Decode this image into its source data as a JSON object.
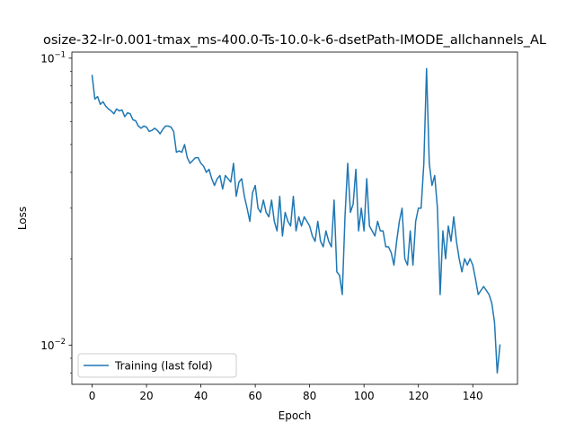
{
  "chart_data": {
    "type": "line",
    "title": "osize-32-lr-0.001-tmax_ms-400.0-Ts-10.0-k-6-dsetPath-IMODE_allchannels_AL",
    "xlabel": "Epoch",
    "ylabel": "Loss",
    "xlim": [
      -7.45,
      156.45
    ],
    "ylim": [
      0.0073,
      0.105
    ],
    "yscale": "log",
    "grid": false,
    "legend_position": "lower-left",
    "x_ticks": [
      0,
      20,
      40,
      60,
      80,
      100,
      120,
      140
    ],
    "x_tick_labels": [
      "0",
      "20",
      "40",
      "60",
      "80",
      "100",
      "120",
      "140"
    ],
    "y_major_ticks": [
      0.01,
      0.1
    ],
    "y_major_tick_labels": [
      "10",
      "10"
    ],
    "y_major_tick_exponents": [
      "−2",
      "−1"
    ],
    "series": [
      {
        "name": "Training (last fold)",
        "color": "#1f77b4",
        "values": [
          0.087,
          0.072,
          0.0735,
          0.069,
          0.0705,
          0.068,
          0.0665,
          0.0655,
          0.064,
          0.0665,
          0.0655,
          0.066,
          0.0625,
          0.0645,
          0.064,
          0.061,
          0.0605,
          0.058,
          0.057,
          0.058,
          0.0575,
          0.0555,
          0.056,
          0.057,
          0.056,
          0.0545,
          0.0565,
          0.058,
          0.058,
          0.0575,
          0.0555,
          0.047,
          0.0475,
          0.047,
          0.05,
          0.045,
          0.043,
          0.044,
          0.045,
          0.045,
          0.043,
          0.042,
          0.04,
          0.041,
          0.038,
          0.036,
          0.038,
          0.039,
          0.035,
          0.039,
          0.038,
          0.037,
          0.043,
          0.033,
          0.037,
          0.038,
          0.033,
          0.03,
          0.027,
          0.034,
          0.036,
          0.03,
          0.029,
          0.032,
          0.029,
          0.028,
          0.032,
          0.027,
          0.025,
          0.033,
          0.024,
          0.029,
          0.027,
          0.026,
          0.033,
          0.025,
          0.028,
          0.026,
          0.028,
          0.027,
          0.026,
          0.024,
          0.023,
          0.027,
          0.023,
          0.022,
          0.025,
          0.023,
          0.022,
          0.032,
          0.018,
          0.0175,
          0.015,
          0.028,
          0.043,
          0.029,
          0.031,
          0.041,
          0.025,
          0.03,
          0.025,
          0.038,
          0.026,
          0.025,
          0.024,
          0.027,
          0.025,
          0.025,
          0.022,
          0.022,
          0.021,
          0.019,
          0.023,
          0.027,
          0.03,
          0.02,
          0.019,
          0.025,
          0.019,
          0.027,
          0.03,
          0.03,
          0.043,
          0.092,
          0.043,
          0.036,
          0.039,
          0.03,
          0.015,
          0.025,
          0.02,
          0.026,
          0.023,
          0.028,
          0.023,
          0.02,
          0.018,
          0.02,
          0.019,
          0.02,
          0.019,
          0.017,
          0.015,
          0.0155,
          0.016,
          0.0155,
          0.015,
          0.014,
          0.012,
          0.008,
          0.01
        ]
      }
    ]
  }
}
